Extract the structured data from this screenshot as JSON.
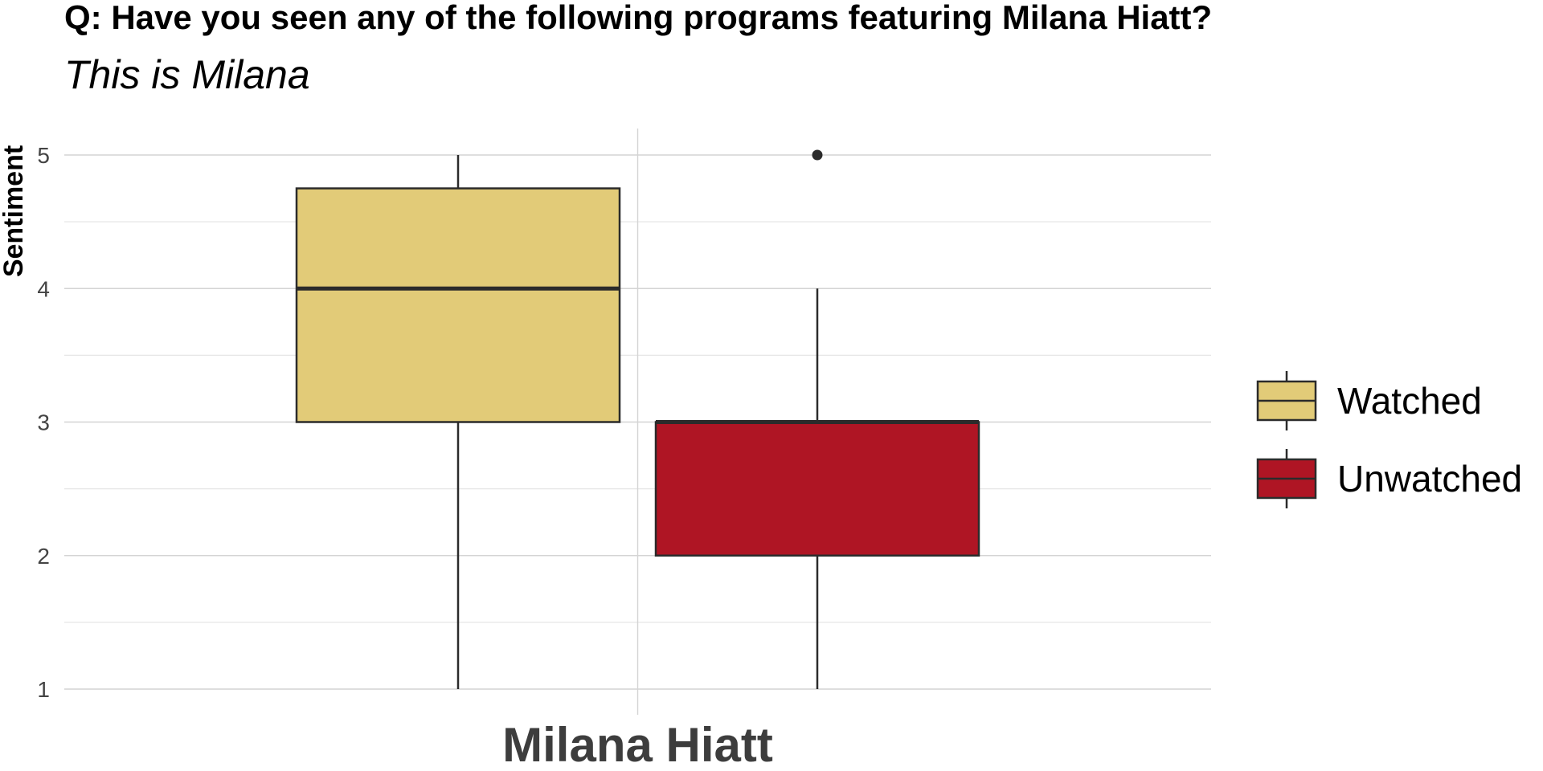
{
  "chart_data": {
    "type": "boxplot",
    "title": "Q: Have you seen any of the following programs featuring Milana Hiatt?",
    "subtitle": "This is Milana",
    "ylabel": "Sentiment",
    "xlabel": "",
    "categories": [
      "Milana Hiatt"
    ],
    "ylim": [
      1,
      5
    ],
    "yticks": [
      1,
      2,
      3,
      4,
      5
    ],
    "grid": true,
    "legend_position": "right",
    "series": [
      {
        "name": "Watched",
        "color": "#E2CB78",
        "min": 1,
        "q1": 3,
        "median": 4,
        "q3": 4.75,
        "max": 5,
        "outliers": []
      },
      {
        "name": "Unwatched",
        "color": "#AF1524",
        "min": 1,
        "q1": 2,
        "median": 3,
        "q3": 3,
        "max": 4,
        "outliers": [
          5
        ]
      }
    ]
  }
}
